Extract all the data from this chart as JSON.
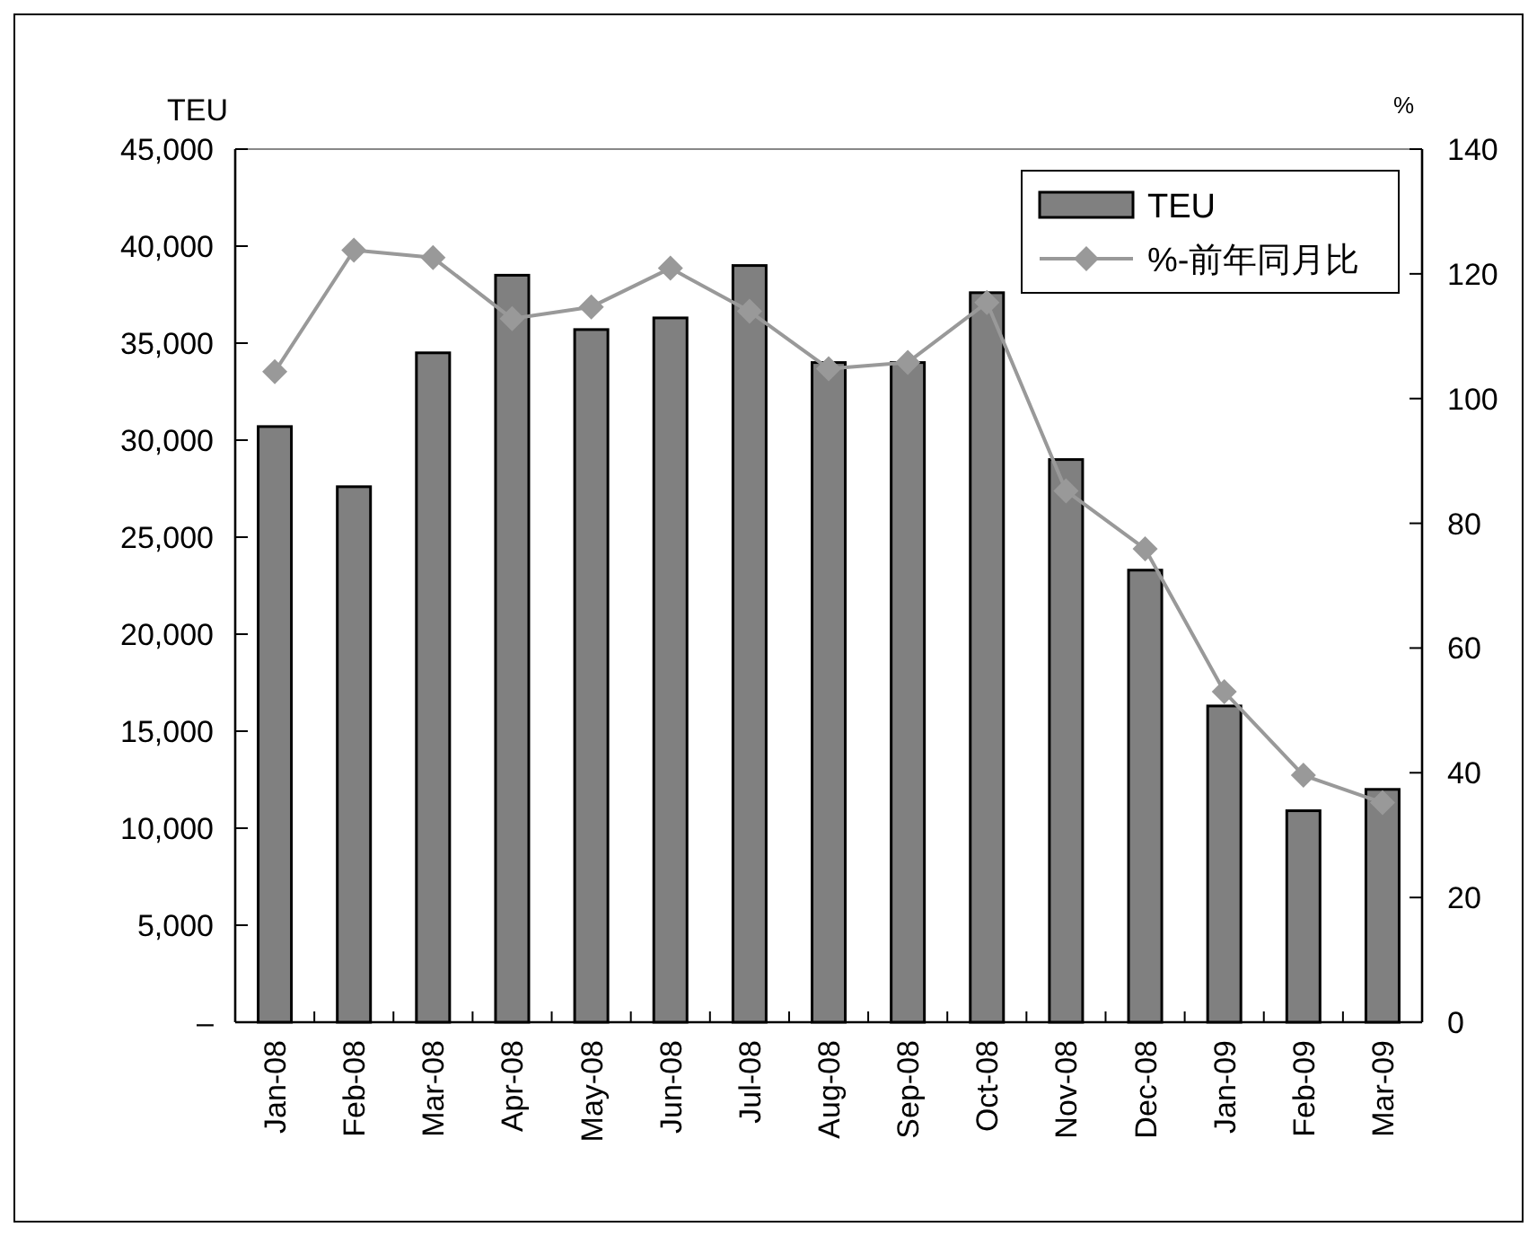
{
  "chart_data": {
    "type": "bar",
    "ylabel": "TEU",
    "y2label": "%",
    "legend": "top right",
    "categories": [
      "Jan-08",
      "Feb-08",
      "Mar-08",
      "Apr-08",
      "May-08",
      "Jun-08",
      "Jul-08",
      "Aug-08",
      "Sep-08",
      "Oct-08",
      "Nov-08",
      "Dec-08",
      "Jan-09",
      "Feb-09",
      "Mar-09"
    ],
    "ylim": [
      0,
      45000
    ],
    "yticks": [
      {
        "value": 0,
        "label": "–"
      },
      {
        "value": 5000,
        "label": "5,000"
      },
      {
        "value": 10000,
        "label": "10,000"
      },
      {
        "value": 15000,
        "label": "15,000"
      },
      {
        "value": 20000,
        "label": "20,000"
      },
      {
        "value": 25000,
        "label": "25,000"
      },
      {
        "value": 30000,
        "label": "30,000"
      },
      {
        "value": 35000,
        "label": "35,000"
      },
      {
        "value": 40000,
        "label": "40,000"
      },
      {
        "value": 45000,
        "label": "45,000"
      }
    ],
    "y2lim": [
      0,
      140
    ],
    "y2ticks": [
      0,
      20,
      40,
      60,
      80,
      100,
      120,
      140
    ],
    "series": [
      {
        "name": "TEU",
        "color": "#808080",
        "values": [
          30700,
          27600,
          34500,
          38500,
          35700,
          36300,
          39000,
          34000,
          34000,
          37600,
          29000,
          23300,
          16300,
          10900,
          12000
        ]
      },
      {
        "name": "%-前年同月比",
        "type": "line",
        "axis": "y2",
        "color": "#999999",
        "marker": "diamond",
        "values": [
          104.3,
          123.8,
          122.6,
          112.8,
          114.7,
          120.9,
          114.0,
          104.8,
          105.8,
          115.4,
          85.2,
          75.9,
          53.0,
          39.6,
          35.2
        ]
      }
    ]
  }
}
